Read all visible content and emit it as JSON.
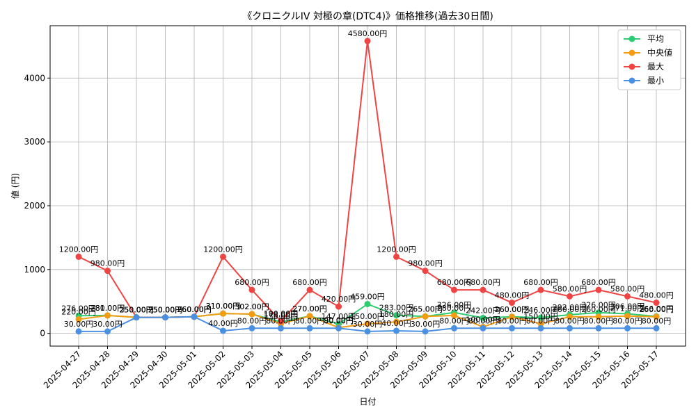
{
  "chart_data": {
    "type": "line",
    "title": "《クロニクルIV 対極の章(DTC4)》価格推移(過去30日間)",
    "xlabel": "日付",
    "ylabel": "値 (円)",
    "ylim": [
      -200,
      4820
    ],
    "yticks": [
      0,
      1000,
      2000,
      3000,
      4000
    ],
    "grid": true,
    "legend_position": "top-right",
    "value_suffix": "円",
    "categories": [
      "2025-04-27",
      "2025-04-28",
      "2025-04-29",
      "2025-04-30",
      "2025-05-01",
      "2025-05-02",
      "2025-05-03",
      "2025-05-04",
      "2025-05-05",
      "2025-05-06",
      "2025-05-07",
      "2025-05-08",
      "2025-05-09",
      "2025-05-10",
      "2025-05-11",
      "2025-05-12",
      "2025-05-13",
      "2025-05-14",
      "2025-05-15",
      "2025-05-16",
      "2025-05-17"
    ],
    "series": [
      {
        "name": "平均",
        "color": "#2ecc71",
        "values": [
          276,
          281,
          250,
          250,
          260,
          310,
          302,
          178,
          270,
          147,
          459,
          283,
          265,
          326,
          242,
          260,
          246,
          292,
          326,
          306,
          266
        ]
      },
      {
        "name": "中央値",
        "color": "#f39c12",
        "values": [
          220,
          280,
          250,
          250,
          260,
          310,
          302,
          150,
          270,
          90,
          150,
          180,
          265,
          280,
          100,
          260,
          150,
          260,
          260,
          271,
          260
        ]
      },
      {
        "name": "最大",
        "color": "#ef4444",
        "values": [
          1200,
          980,
          250,
          250,
          260,
          1200,
          680,
          190,
          680,
          420,
          4580,
          1200,
          980,
          680,
          680,
          480,
          680,
          580,
          680,
          580,
          480
        ]
      },
      {
        "name": "最小",
        "color": "#4a90e2",
        "values": [
          30,
          30,
          250,
          250,
          260,
          40,
          80,
          80,
          80,
          80,
          30,
          40,
          30,
          80,
          80,
          80,
          80,
          80,
          80,
          80,
          80
        ]
      }
    ]
  }
}
